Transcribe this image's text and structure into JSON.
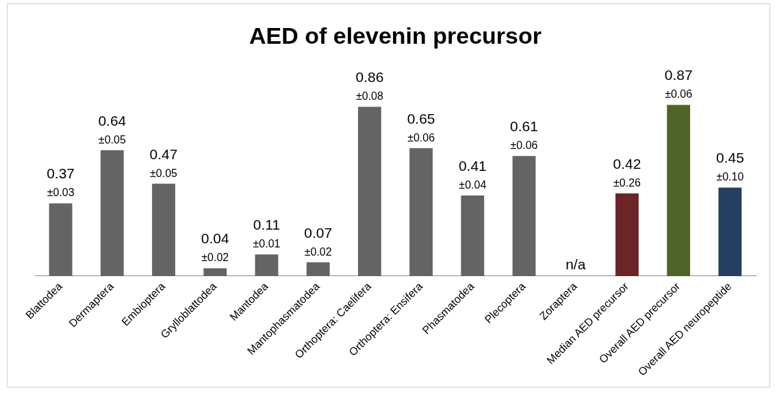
{
  "chart_data": {
    "type": "bar",
    "title": "AED of elevenin precursor",
    "categories": [
      "Blattodea",
      "Dermaptera",
      "Embioptera",
      "Grylloblattodea",
      "Mantodea",
      "Mantophasmatodea",
      "Orthoptera: Caelifera",
      "Orthoptera: Ensifera",
      "Phasmatodea",
      "Plecoptera",
      "Zoraptera",
      "Median AED precursor",
      "Overall AED precursor",
      "Overall AED neuropeptide"
    ],
    "values": [
      0.37,
      0.64,
      0.47,
      0.04,
      0.11,
      0.07,
      0.86,
      0.65,
      0.41,
      0.61,
      null,
      0.42,
      0.87,
      0.45
    ],
    "colors": [
      "#646464",
      "#646464",
      "#646464",
      "#646464",
      "#646464",
      "#646464",
      "#646464",
      "#646464",
      "#646464",
      "#646464",
      "#646464",
      "#6b2527",
      "#4f6228",
      "#243f60"
    ],
    "value_labels": [
      "0.37\n±0.03",
      "0.64\n±0.05",
      "0.47\n±0.05",
      "0.04\n±0.02",
      "0.11\n±0.01",
      "0.07\n±0.02",
      "0.86\n±0.08",
      "0.65\n±0.06",
      "0.41\n±0.04",
      "0.61\n±0.06",
      "n/a",
      "0.42\n±0.26",
      "0.87\n±0.06",
      "0.45\n±0.10"
    ],
    "grid": false,
    "legend": false
  }
}
